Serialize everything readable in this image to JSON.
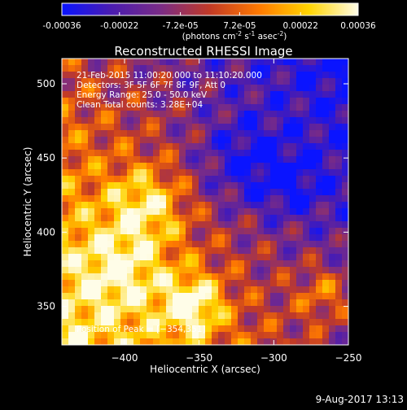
{
  "colorbar": {
    "ticks": [
      "-0.00036",
      "-0.00022",
      "-7.2e-05",
      "7.2e-05",
      "0.00022",
      "0.00036"
    ],
    "tick_values": [
      -0.00036,
      -0.00022,
      -7.2e-05,
      7.2e-05,
      0.00022,
      0.00036
    ],
    "range": [
      -0.00036,
      0.00036
    ],
    "unit_main": "(photons cm",
    "unit_exp1": "-2",
    "unit_mid": " s",
    "unit_exp2": "-1",
    "unit_tail": " asec",
    "unit_exp3": "-2",
    "unit_close": ")",
    "colors": [
      "#0a14ff",
      "#4a1cb0",
      "#7a2c86",
      "#c23a26",
      "#ff7a00",
      "#ffd400",
      "#fffde8"
    ]
  },
  "chart_data": {
    "type": "heatmap",
    "title": "Reconstructed RHESSI Image",
    "xlabel": "Heliocentric X (arcsec)",
    "ylabel": "Heliocentric Y (arcsec)",
    "xlim": [
      -442,
      -250
    ],
    "ylim": [
      324,
      517
    ],
    "xticks": [
      -400,
      -350,
      -300,
      -250
    ],
    "xtick_labels": [
      "−400",
      "−350",
      "−300",
      "−250"
    ],
    "yticks": [
      350,
      400,
      450,
      500
    ],
    "ytick_labels": [
      "350",
      "400",
      "450",
      "500"
    ],
    "grid": false,
    "peak": [
      -354,
      351
    ],
    "info_lines": [
      "21-Feb-2015 11:00:20.000 to 11:10:20.000",
      "Detectors: 3F 5F 6F 7F 8F 9F, Att 0",
      "Energy Range: 25.0 - 50.0 keV",
      "Clean    Total counts: 3.28E+04"
    ],
    "peak_label": "Position of Peak = [−354,351]"
  },
  "footer": {
    "date": "9-Aug-2017 13:13"
  }
}
